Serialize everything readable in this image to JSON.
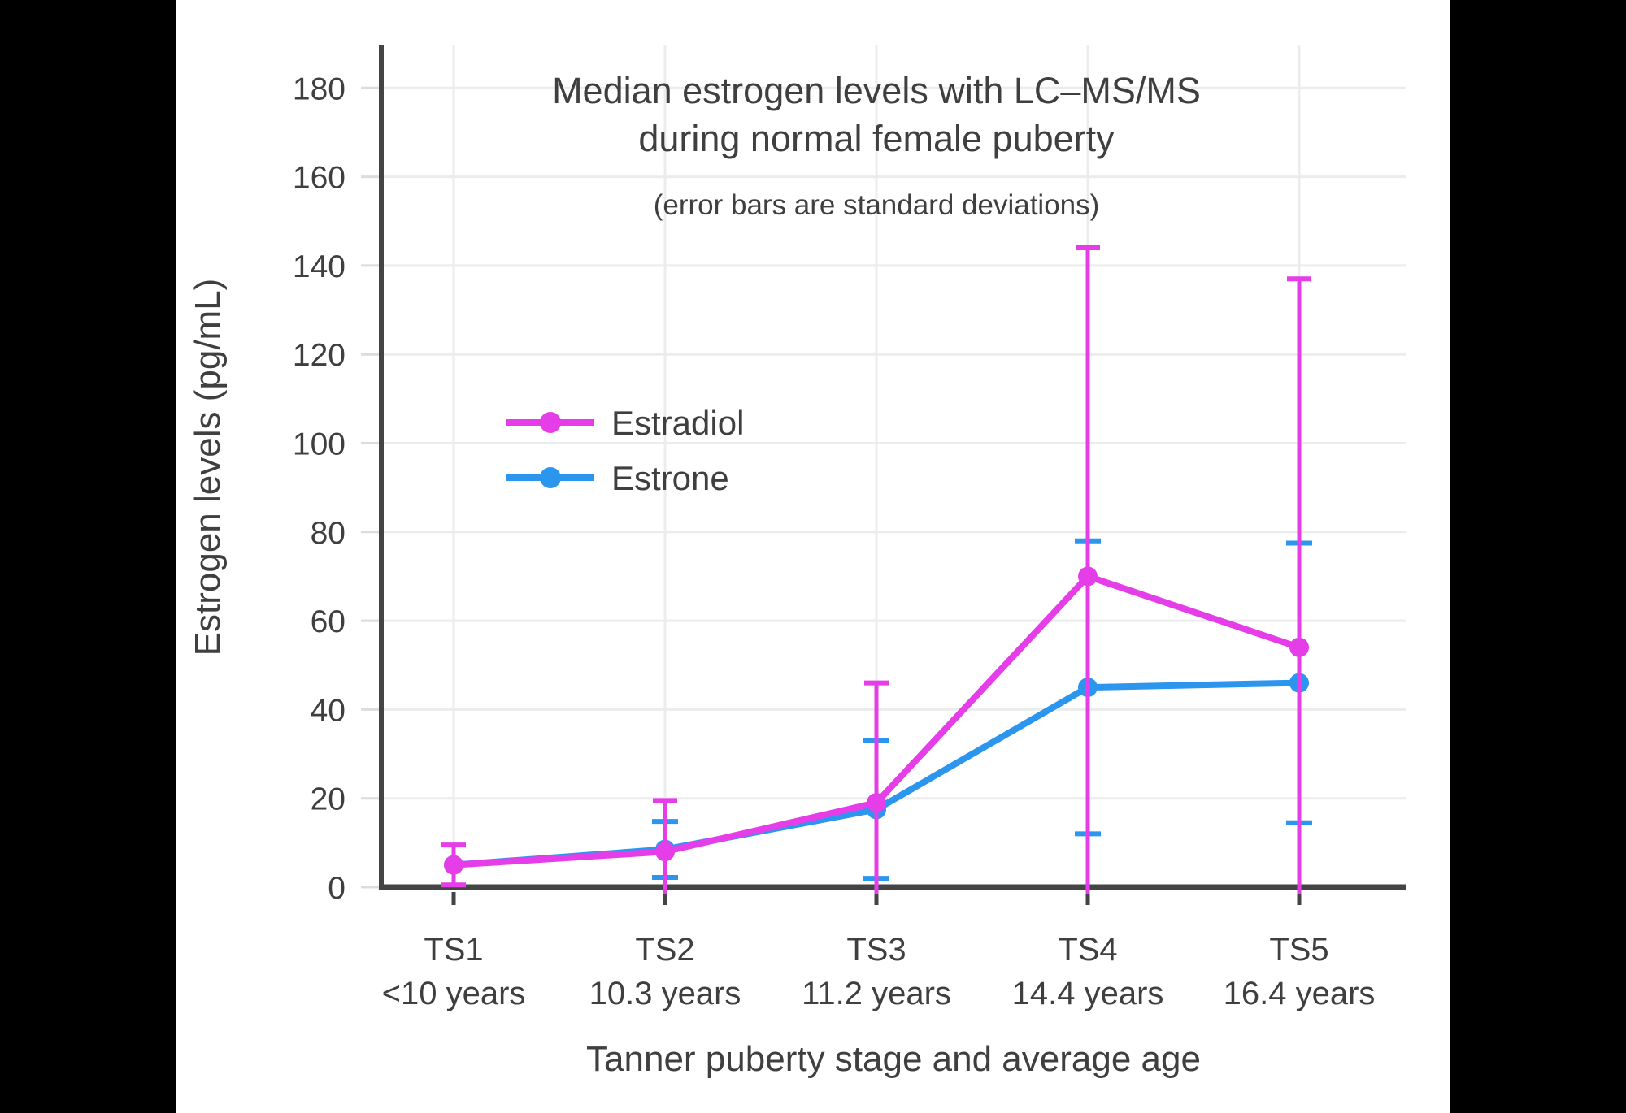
{
  "frame": {
    "background": "#000000",
    "content_background": "#ffffff",
    "text_color": "#3f3f3f",
    "gridline_color": "#ececec",
    "axis_color": "#444444"
  },
  "chart_data": {
    "type": "line",
    "title_line1": "Median estrogen levels with LC–MS/MS",
    "title_line2": "during normal female puberty",
    "subtitle": "(error bars are standard deviations)",
    "xlabel": "Tanner puberty stage and average age",
    "ylabel": "Estrogen levels (pg/mL)",
    "x_categories": [
      {
        "stage": "TS1",
        "age": "<10 years"
      },
      {
        "stage": "TS2",
        "age": "10.3 years"
      },
      {
        "stage": "TS3",
        "age": "11.2 years"
      },
      {
        "stage": "TS4",
        "age": "14.4 years"
      },
      {
        "stage": "TS5",
        "age": "16.4 years"
      }
    ],
    "y_ticks": [
      0,
      20,
      40,
      60,
      80,
      100,
      120,
      140,
      160,
      180
    ],
    "ylim": [
      0,
      190
    ],
    "grid": true,
    "error_bars": "standard deviations",
    "legend_position": "upper-left-inside",
    "series": [
      {
        "name": "Estradiol",
        "color": "#E53EE9",
        "values": [
          5,
          8,
          19,
          70,
          54
        ],
        "sd": [
          4.5,
          11.5,
          27,
          74,
          83
        ]
      },
      {
        "name": "Estrone",
        "color": "#2C96EF",
        "values": [
          5,
          8.5,
          17.5,
          45,
          46
        ],
        "sd": [
          null,
          6.3,
          15.5,
          33,
          31.5
        ]
      }
    ]
  }
}
